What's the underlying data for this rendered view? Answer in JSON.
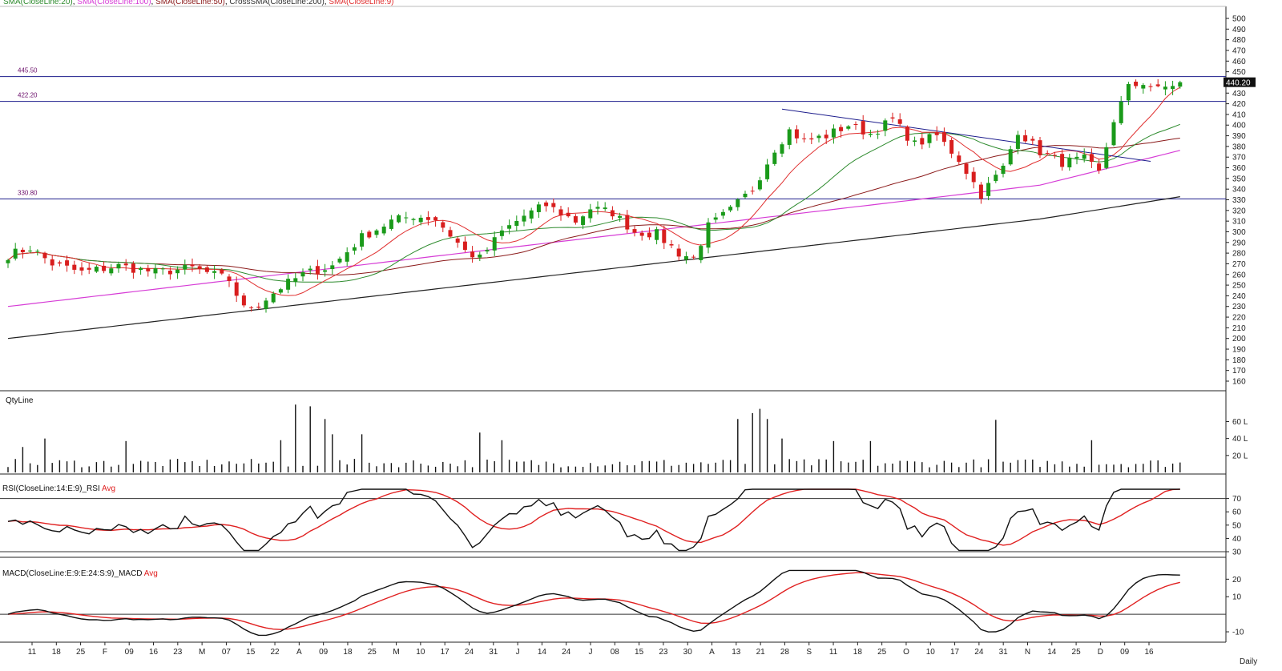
{
  "legend": [
    {
      "label": "SMA(CloseLine:20)",
      "color": "#2e8b2e"
    },
    {
      "label": "SMA(CloseLine:100)",
      "color": "#d63cd6"
    },
    {
      "label": "SMA(CloseLine:50)",
      "color": "#8b1a1a"
    },
    {
      "label": "CrossSMA(CloseLine:200)",
      "color": "#333333"
    },
    {
      "label": "SMA(CloseLine:9)",
      "color": "#e03030"
    }
  ],
  "price_box": "440.20",
  "period_label": "Daily",
  "volume_label": "QtyLine",
  "rsi_label": "RSI(CloseLine:14:E:9)_RSI",
  "rsi_avg_label": "Avg",
  "macd_label": "MACD(CloseLine:E:9:E:24:S:9)_MACD",
  "macd_avg_label": "Avg",
  "colors": {
    "up": "#1a9a1a",
    "down": "#d81e1e",
    "level": "#1c1c8c",
    "rsi": "#111111",
    "avg": "#e02020"
  },
  "chart_data": [
    {
      "type": "candlestick",
      "name": "price",
      "ylim": [
        155,
        505
      ],
      "yticks": [
        500,
        490,
        480,
        470,
        460,
        450,
        440,
        430,
        420,
        410,
        400,
        390,
        380,
        370,
        360,
        350,
        340,
        330,
        320,
        310,
        300,
        290,
        280,
        270,
        260,
        250,
        240,
        230,
        220,
        210,
        200,
        190,
        180,
        170,
        160
      ],
      "levels": [
        {
          "value": 445.5,
          "label": "445.50"
        },
        {
          "value": 422.2,
          "label": "422.20"
        },
        {
          "value": 330.8,
          "label": "330.80"
        }
      ],
      "last_price": 440.2,
      "trendline": [
        [
          105,
          415
        ],
        [
          155,
          366
        ]
      ],
      "anchors": [
        [
          0,
          278
        ],
        [
          3,
          285
        ],
        [
          6,
          270
        ],
        [
          10,
          262
        ],
        [
          15,
          268
        ],
        [
          20,
          262
        ],
        [
          25,
          266
        ],
        [
          30,
          255
        ],
        [
          32,
          228
        ],
        [
          34,
          232
        ],
        [
          37,
          248
        ],
        [
          40,
          260
        ],
        [
          44,
          268
        ],
        [
          48,
          295
        ],
        [
          52,
          310
        ],
        [
          55,
          315
        ],
        [
          58,
          312
        ],
        [
          62,
          282
        ],
        [
          64,
          275
        ],
        [
          67,
          300
        ],
        [
          70,
          315
        ],
        [
          73,
          325
        ],
        [
          77,
          310
        ],
        [
          79,
          322
        ],
        [
          82,
          318
        ],
        [
          85,
          300
        ],
        [
          88,
          298
        ],
        [
          91,
          280
        ],
        [
          93,
          275
        ],
        [
          95,
          305
        ],
        [
          98,
          320
        ],
        [
          101,
          340
        ],
        [
          104,
          378
        ],
        [
          106,
          395
        ],
        [
          108,
          385
        ],
        [
          111,
          390
        ],
        [
          114,
          400
        ],
        [
          117,
          392
        ],
        [
          120,
          405
        ],
        [
          123,
          382
        ],
        [
          126,
          390
        ],
        [
          129,
          368
        ],
        [
          132,
          335
        ],
        [
          135,
          360
        ],
        [
          137,
          395
        ],
        [
          140,
          375
        ],
        [
          143,
          365
        ],
        [
          146,
          368
        ],
        [
          148,
          355
        ],
        [
          150,
          405
        ],
        [
          152,
          435
        ],
        [
          154,
          440
        ],
        [
          156,
          433
        ],
        [
          158,
          438
        ],
        [
          159,
          440.2
        ]
      ],
      "x_axis_labels": [
        "11",
        "18",
        "25",
        "F",
        "09",
        "16",
        "23",
        "M",
        "07",
        "15",
        "22",
        "A",
        "09",
        "18",
        "25",
        "M",
        "10",
        "17",
        "24",
        "31",
        "J",
        "14",
        "24",
        "J",
        "08",
        "15",
        "23",
        "30",
        "A",
        "13",
        "21",
        "28",
        "S",
        "11",
        "18",
        "25",
        "O",
        "10",
        "17",
        "24",
        "31",
        "N",
        "14",
        "25",
        "D",
        "09",
        "16"
      ]
    },
    {
      "type": "bar",
      "name": "volume",
      "ylabel": "QtyLine",
      "ylim": [
        0,
        85
      ],
      "yticks": [
        {
          "v": 60,
          "label": "60 L"
        },
        {
          "v": 40,
          "label": "40 L"
        },
        {
          "v": 20,
          "label": "20 L"
        }
      ],
      "spikes": [
        [
          2,
          30
        ],
        [
          5,
          40
        ],
        [
          16,
          37
        ],
        [
          37,
          38
        ],
        [
          39,
          80
        ],
        [
          41,
          78
        ],
        [
          43,
          63
        ],
        [
          44,
          45
        ],
        [
          48,
          45
        ],
        [
          64,
          47
        ],
        [
          67,
          38
        ],
        [
          99,
          63
        ],
        [
          101,
          70
        ],
        [
          102,
          75
        ],
        [
          103,
          63
        ],
        [
          105,
          40
        ],
        [
          112,
          37
        ],
        [
          117,
          37
        ],
        [
          134,
          62
        ],
        [
          147,
          38
        ]
      ]
    },
    {
      "type": "line",
      "name": "rsi",
      "ylabel": "RSI(CloseLine:14:E:9)_RSI",
      "ylim": [
        27,
        80
      ],
      "yticks": [
        70,
        60,
        50,
        40,
        30
      ],
      "levels": [
        70,
        30
      ],
      "series": [
        {
          "name": "RSI"
        },
        {
          "name": "Avg"
        }
      ]
    },
    {
      "type": "line",
      "name": "macd",
      "ylabel": "MACD(CloseLine:E:9:E:24:S:9)_MACD",
      "ylim": [
        -15,
        27
      ],
      "yticks": [
        {
          "v": 20,
          "label": "20"
        },
        {
          "v": 10,
          "label": "10"
        },
        {
          "v": -10,
          "label": "-10"
        }
      ],
      "levels": [
        0
      ],
      "series": [
        {
          "name": "MACD"
        },
        {
          "name": "Avg"
        }
      ]
    }
  ]
}
